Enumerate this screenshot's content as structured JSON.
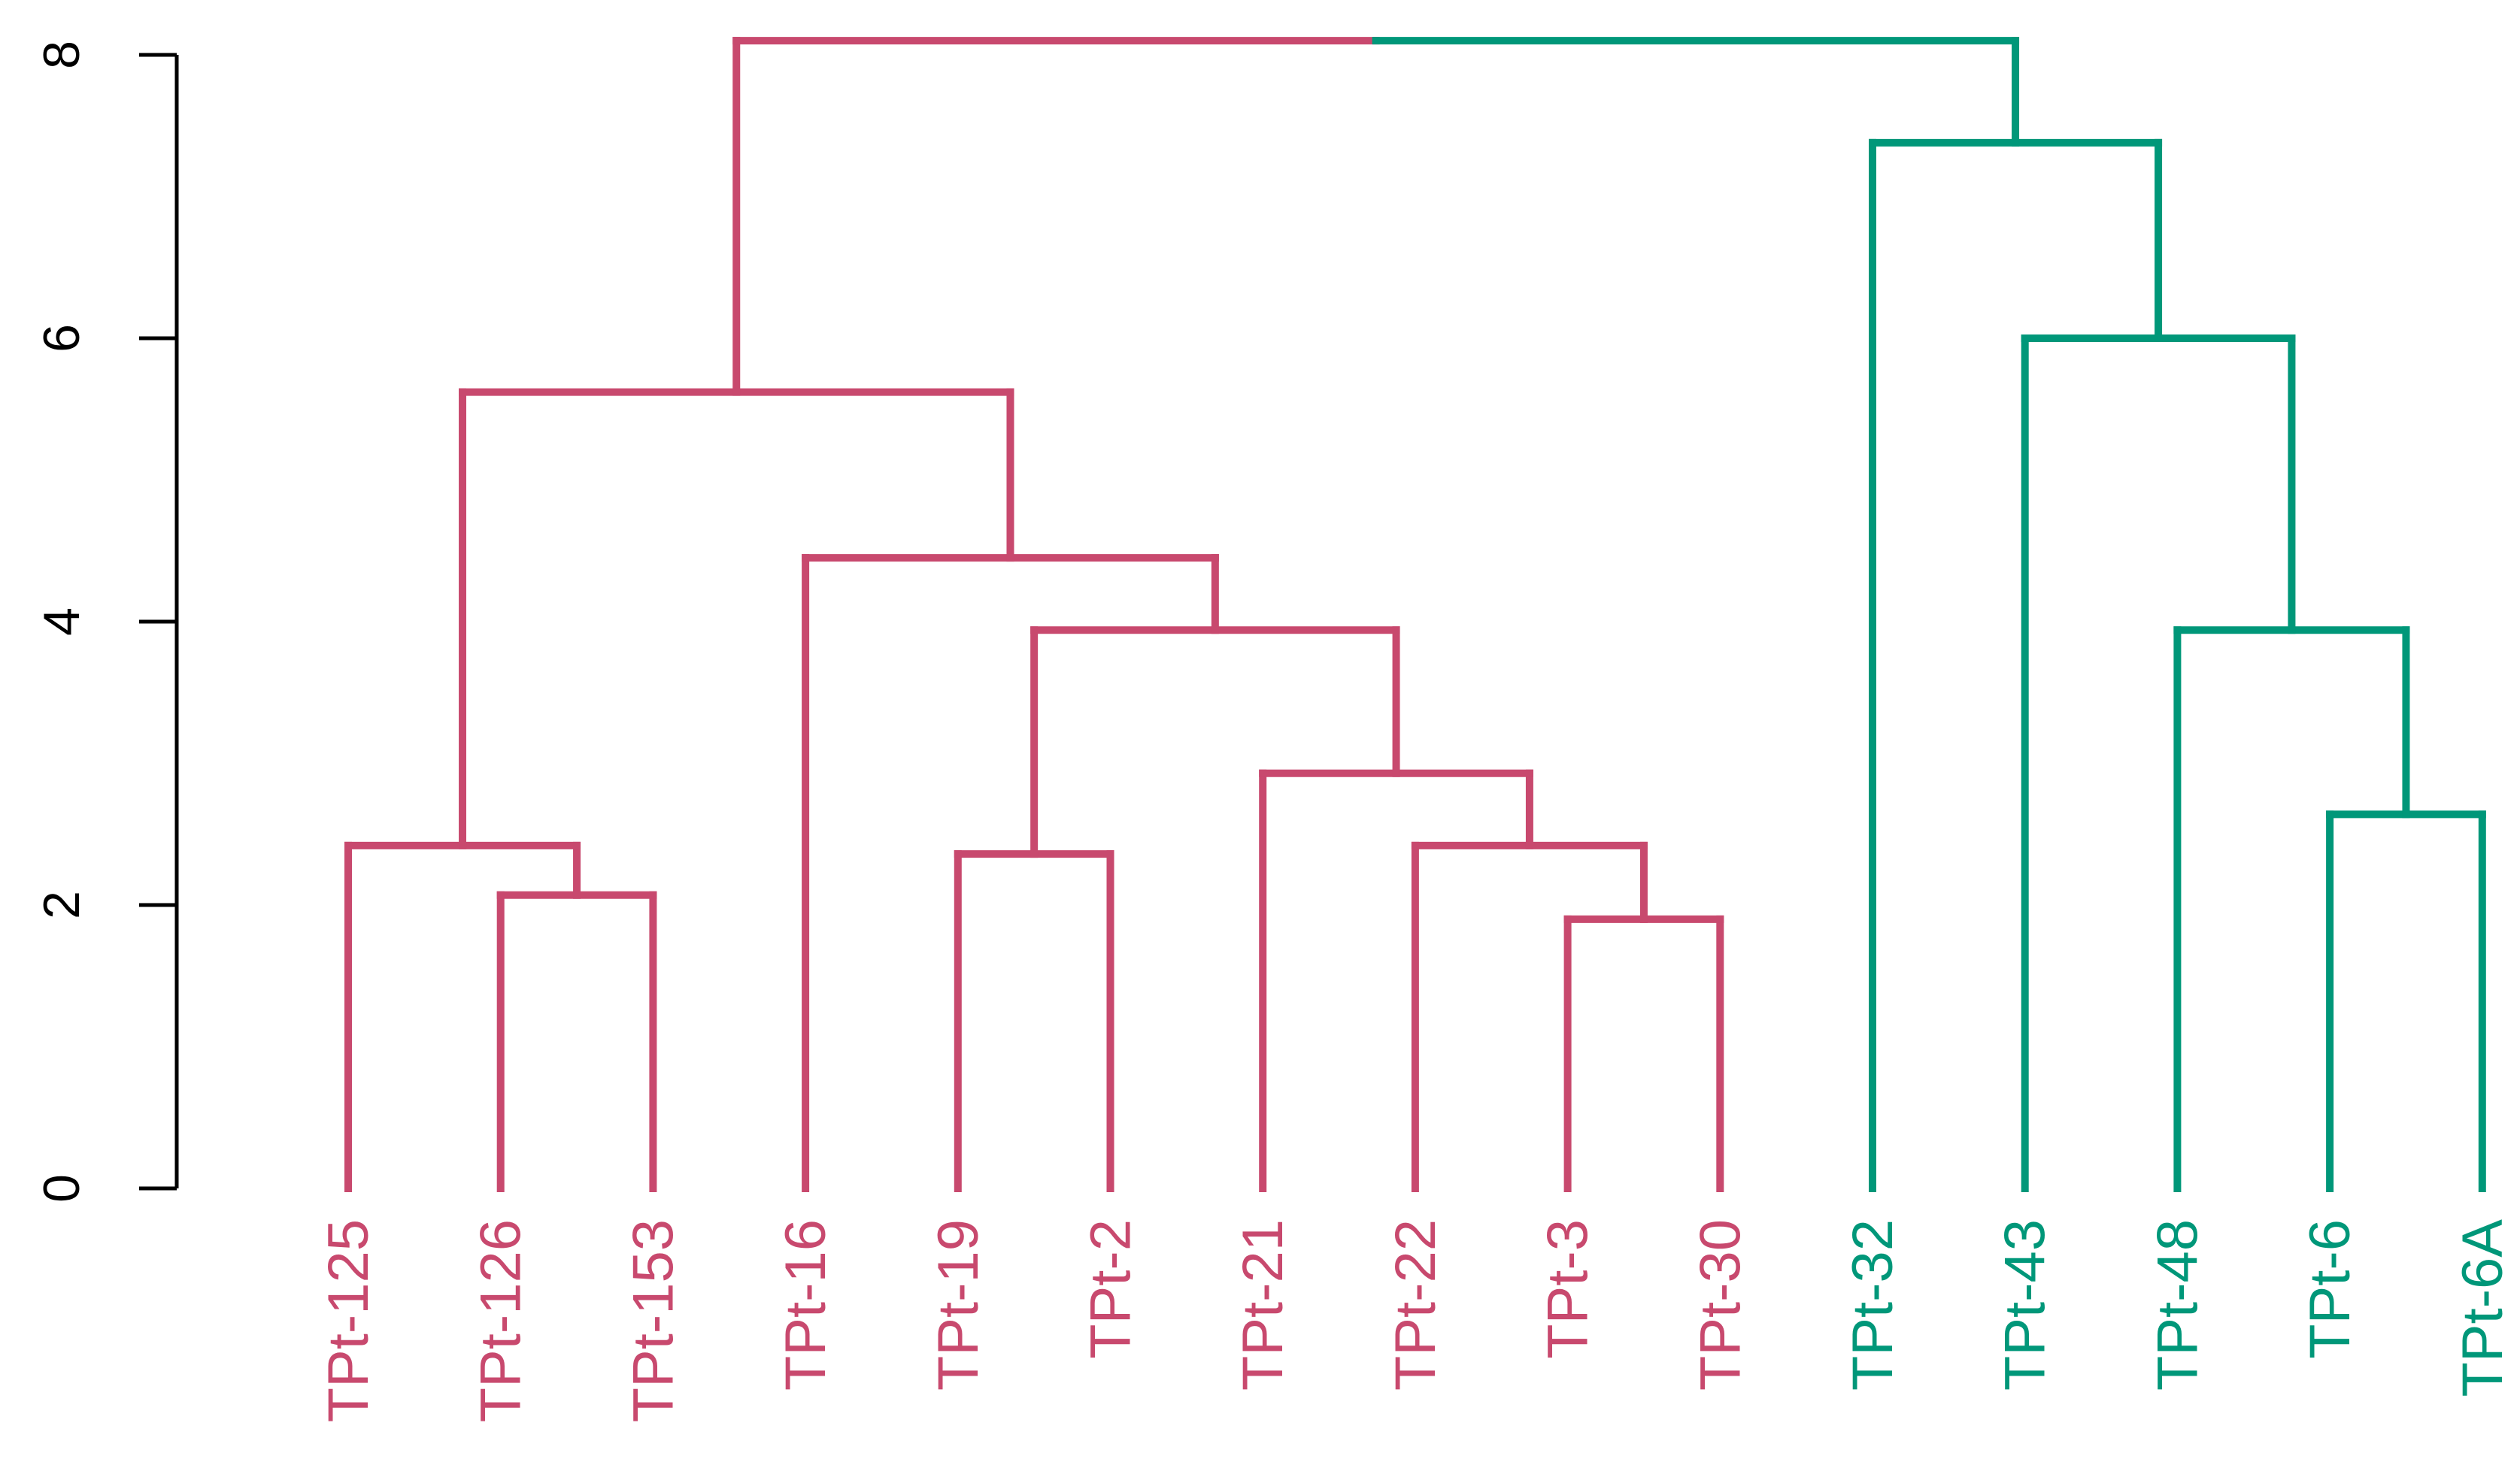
{
  "chart_data": {
    "type": "dendrogram",
    "title": "",
    "xlabel": "",
    "ylabel": "",
    "ylim": [
      0,
      8
    ],
    "y_ticks": [
      "0",
      "2",
      "4",
      "6",
      "8"
    ],
    "colors": {
      "cluster_1": "#C8496E",
      "cluster_2": "#009779",
      "axis": "#000000"
    },
    "leaves": [
      {
        "label": "TPt-125",
        "cluster": 1
      },
      {
        "label": "TPt-126",
        "cluster": 1
      },
      {
        "label": "TPt-153",
        "cluster": 1
      },
      {
        "label": "TPt-16",
        "cluster": 1
      },
      {
        "label": "TPt-19",
        "cluster": 1
      },
      {
        "label": "TPt-2",
        "cluster": 1
      },
      {
        "label": "TPt-21",
        "cluster": 1
      },
      {
        "label": "TPt-22",
        "cluster": 1
      },
      {
        "label": "TPt-3",
        "cluster": 1
      },
      {
        "label": "TPt-30",
        "cluster": 1
      },
      {
        "label": "TPt-32",
        "cluster": 2
      },
      {
        "label": "TPt-43",
        "cluster": 2
      },
      {
        "label": "TPt-48",
        "cluster": 2
      },
      {
        "label": "TPt-6",
        "cluster": 2
      },
      {
        "label": "TPt-6A",
        "cluster": 2
      }
    ],
    "merges": [
      {
        "id": "m1",
        "left": "TPt-3",
        "right": "TPt-30",
        "height": 1.9,
        "cluster": 1
      },
      {
        "id": "m2",
        "left": "TPt-126",
        "right": "TPt-153",
        "height": 2.07,
        "cluster": 1
      },
      {
        "id": "m3",
        "left": "TPt-19",
        "right": "TPt-2",
        "height": 2.36,
        "cluster": 1
      },
      {
        "id": "m4",
        "left": "TPt-125",
        "right": "m2",
        "height": 2.42,
        "cluster": 1
      },
      {
        "id": "m5",
        "left": "TPt-22",
        "right": "m1",
        "height": 2.42,
        "cluster": 1
      },
      {
        "id": "m6",
        "left": "TPt-6",
        "right": "TPt-6A",
        "height": 2.64,
        "cluster": 2
      },
      {
        "id": "m7",
        "left": "TPt-21",
        "right": "m5",
        "height": 2.93,
        "cluster": 1
      },
      {
        "id": "m8",
        "left": "m3",
        "right": "m7",
        "height": 3.94,
        "cluster": 1
      },
      {
        "id": "m9",
        "left": "TPt-48",
        "right": "m6",
        "height": 3.94,
        "cluster": 2
      },
      {
        "id": "m10",
        "left": "TPt-16",
        "right": "m8",
        "height": 4.45,
        "cluster": 1
      },
      {
        "id": "m11",
        "left": "m4",
        "right": "m10",
        "height": 5.62,
        "cluster": 1
      },
      {
        "id": "m12",
        "left": "TPt-43",
        "right": "m9",
        "height": 6.0,
        "cluster": 2
      },
      {
        "id": "m13",
        "left": "TPt-32",
        "right": "m12",
        "height": 7.38,
        "cluster": 2
      },
      {
        "id": "m14",
        "left": "m11",
        "right": "m13",
        "height": 8.1,
        "cluster": 0
      }
    ]
  }
}
